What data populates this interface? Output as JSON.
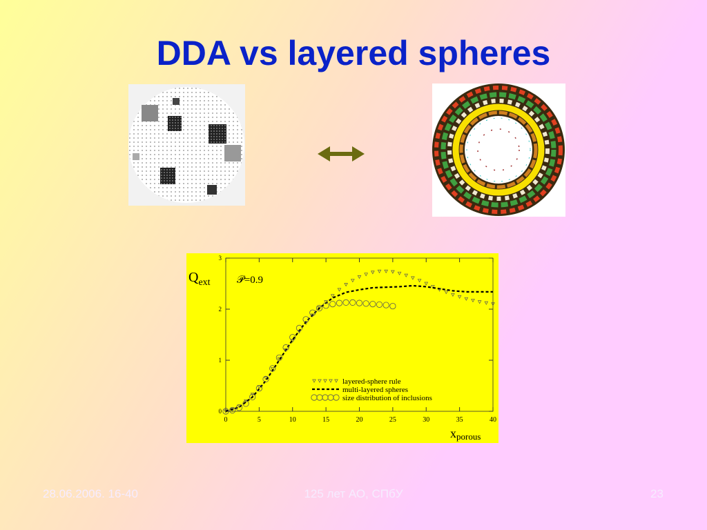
{
  "title": "DDA vs layered spheres",
  "footer": {
    "date": "28.06.2006. 16-40",
    "center": "125 лет АО, СПбУ",
    "page": "23"
  },
  "chart_data": {
    "type": "line",
    "ylabel": "Q",
    "ylabel_sub": "ext",
    "xlabel": "x",
    "xlabel_sub": "porous",
    "annotation": "𝒫=0.9",
    "xlim": [
      0,
      40
    ],
    "xticks": [
      0,
      5,
      10,
      15,
      20,
      25,
      30,
      35,
      40
    ],
    "ylim": [
      0,
      3
    ],
    "yticks": [
      0,
      1,
      2,
      3
    ],
    "series": [
      {
        "name": "layered-sphere rule",
        "marker": "triangle",
        "color": "#555555",
        "x": [
          0,
          1,
          2,
          3,
          4,
          5,
          6,
          7,
          8,
          9,
          10,
          11,
          12,
          13,
          14,
          15,
          16,
          17,
          18,
          19,
          20,
          21,
          22,
          23,
          24,
          25,
          26,
          27,
          28,
          29,
          30,
          31,
          32,
          33,
          34,
          35,
          36,
          37,
          38,
          39,
          40
        ],
        "values": [
          0,
          0.03,
          0.1,
          0.2,
          0.33,
          0.48,
          0.65,
          0.83,
          1.02,
          1.2,
          1.38,
          1.56,
          1.73,
          1.88,
          2.02,
          2.14,
          2.26,
          2.38,
          2.48,
          2.56,
          2.63,
          2.68,
          2.72,
          2.74,
          2.74,
          2.73,
          2.7,
          2.66,
          2.61,
          2.56,
          2.5,
          2.44,
          2.38,
          2.33,
          2.28,
          2.24,
          2.2,
          2.17,
          2.14,
          2.12,
          2.1
        ]
      },
      {
        "name": "multi-layered spheres",
        "marker": "dash",
        "color": "#000000",
        "x": [
          0,
          2,
          4,
          6,
          8,
          10,
          12,
          14,
          16,
          18,
          20,
          22,
          24,
          26,
          28,
          30,
          32,
          34,
          36,
          38,
          40
        ],
        "values": [
          0,
          0.08,
          0.28,
          0.6,
          1.0,
          1.4,
          1.75,
          2.02,
          2.22,
          2.33,
          2.38,
          2.42,
          2.43,
          2.44,
          2.46,
          2.44,
          2.4,
          2.36,
          2.34,
          2.34,
          2.34
        ]
      },
      {
        "name": "size distribution of inclusions",
        "marker": "circle",
        "color": "#555555",
        "x": [
          0,
          1,
          2,
          3,
          4,
          5,
          6,
          7,
          8,
          9,
          10,
          11,
          12,
          13,
          14,
          15,
          16,
          17,
          18,
          19,
          20,
          21,
          22,
          23,
          24,
          25
        ],
        "values": [
          0,
          0.02,
          0.07,
          0.15,
          0.28,
          0.45,
          0.63,
          0.84,
          1.05,
          1.25,
          1.45,
          1.63,
          1.8,
          1.93,
          2.02,
          2.07,
          2.1,
          2.12,
          2.13,
          2.13,
          2.12,
          2.11,
          2.1,
          2.09,
          2.08,
          2.06
        ]
      }
    ]
  }
}
